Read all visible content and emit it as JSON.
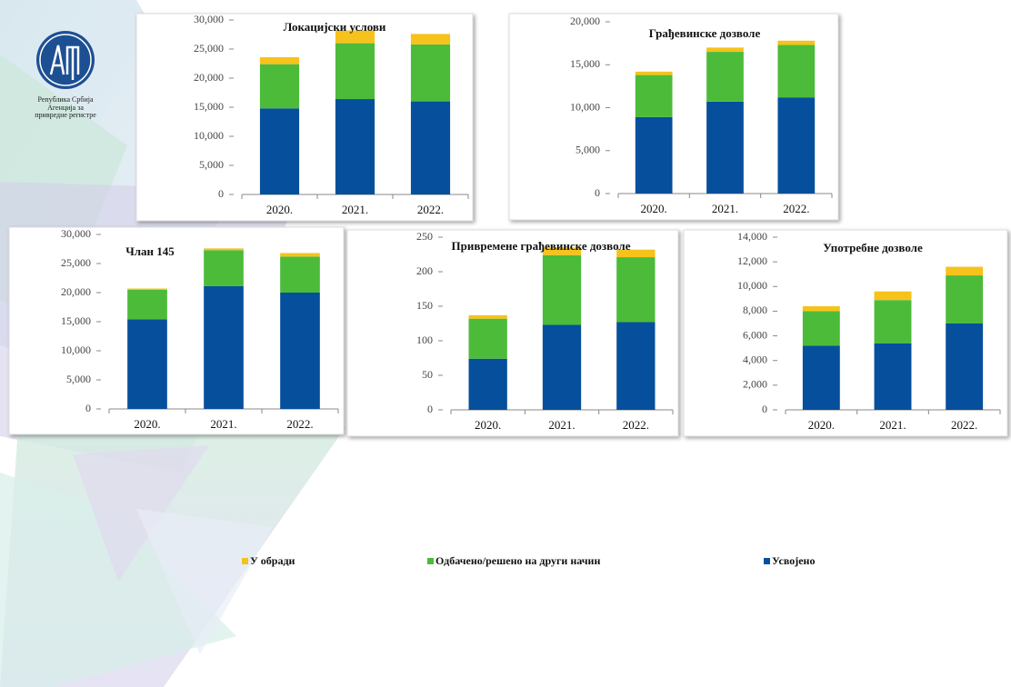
{
  "logo": {
    "line1": "Република Србија",
    "line2": "Агенција за",
    "line3": "привредне регистре"
  },
  "legend": [
    {
      "name": "У обради",
      "color": "#f6c21c"
    },
    {
      "name": "Одбачено/решено на други начин",
      "color": "#4cbb3a"
    },
    {
      "name": "Усвојено",
      "color": "#064f9c"
    }
  ],
  "chart_data": [
    {
      "type": "bar",
      "stacked": true,
      "title": "Локацијски услови",
      "categories": [
        "2020.",
        "2021.",
        "2022."
      ],
      "series": [
        {
          "values": [
            1200,
            2200,
            1800
          ]
        },
        {
          "values": [
            7600,
            9600,
            9800
          ]
        },
        {
          "values": [
            14800,
            16400,
            16000
          ]
        }
      ],
      "ylim": [
        0,
        30000
      ],
      "yticks": [
        0,
        {
          "value": 5000,
          "label": "5,000"
        },
        {
          "value": 10000,
          "label": "10,000"
        },
        {
          "value": 15000,
          "label": "15,000"
        },
        {
          "value": 20000,
          "label": "20,000"
        },
        {
          "value": 25000,
          "label": "25,000"
        },
        {
          "value": 30000,
          "label": "30,000"
        }
      ]
    },
    {
      "type": "bar",
      "stacked": true,
      "title": "Грађевинске дозволе",
      "categories": [
        "2020.",
        "2021.",
        "2022."
      ],
      "series": [
        {
          "values": [
            400,
            500,
            500
          ]
        },
        {
          "values": [
            4900,
            5800,
            6100
          ]
        },
        {
          "values": [
            8900,
            10700,
            11200
          ]
        }
      ],
      "ylim": [
        0,
        20000
      ],
      "yticks": [
        0,
        {
          "value": 5000,
          "label": "5,000"
        },
        {
          "value": 10000,
          "label": "10,000"
        },
        {
          "value": 15000,
          "label": "15,000"
        },
        {
          "value": 20000,
          "label": "20,000"
        }
      ]
    },
    {
      "type": "bar",
      "stacked": true,
      "title": "Члан 145",
      "categories": [
        "2020.",
        "2021.",
        "2022."
      ],
      "series": [
        {
          "values": [
            200,
            300,
            600
          ]
        },
        {
          "values": [
            5100,
            6200,
            6200
          ]
        },
        {
          "values": [
            15400,
            21100,
            20000
          ]
        }
      ],
      "ylim": [
        0,
        30000
      ],
      "yticks": [
        0,
        {
          "value": 5000,
          "label": "5,000"
        },
        {
          "value": 10000,
          "label": "10,000"
        },
        {
          "value": 15000,
          "label": "15,000"
        },
        {
          "value": 20000,
          "label": "20,000"
        },
        {
          "value": 25000,
          "label": "25,000"
        },
        {
          "value": 30000,
          "label": "30,000"
        }
      ]
    },
    {
      "type": "bar",
      "stacked": true,
      "title": "Привремене грађевинске дозволе",
      "categories": [
        "2020.",
        "2021.",
        "2022."
      ],
      "series": [
        {
          "values": [
            5,
            11,
            11
          ]
        },
        {
          "values": [
            58,
            101,
            94
          ]
        },
        {
          "values": [
            74,
            123,
            127
          ]
        }
      ],
      "ylim": [
        0,
        250
      ],
      "yticks": [
        0,
        50,
        100,
        150,
        200,
        250
      ]
    },
    {
      "type": "bar",
      "stacked": true,
      "title": "Употребне дозволе",
      "categories": [
        "2020.",
        "2021.",
        "2022."
      ],
      "series": [
        {
          "values": [
            400,
            700,
            700
          ]
        },
        {
          "values": [
            2800,
            3500,
            3900
          ]
        },
        {
          "values": [
            5200,
            5400,
            7000
          ]
        }
      ],
      "ylim": [
        0,
        14000
      ],
      "yticks": [
        0,
        {
          "value": 2000,
          "label": "2,000"
        },
        {
          "value": 4000,
          "label": "4,000"
        },
        {
          "value": 6000,
          "label": "6,000"
        },
        {
          "value": 8000,
          "label": "8,000"
        },
        {
          "value": 10000,
          "label": "10,000"
        },
        {
          "value": 12000,
          "label": "12,000"
        },
        {
          "value": 14000,
          "label": "14,000"
        }
      ]
    }
  ]
}
